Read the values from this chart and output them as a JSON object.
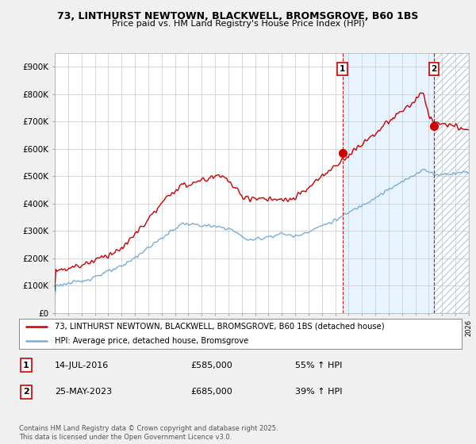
{
  "title_line1": "73, LINTHURST NEWTOWN, BLACKWELL, BROMSGROVE, B60 1BS",
  "title_line2": "Price paid vs. HM Land Registry's House Price Index (HPI)",
  "ylim": [
    0,
    950000
  ],
  "yticks": [
    0,
    100000,
    200000,
    300000,
    400000,
    500000,
    600000,
    700000,
    800000,
    900000
  ],
  "ytick_labels": [
    "£0",
    "£100K",
    "£200K",
    "£300K",
    "£400K",
    "£500K",
    "£600K",
    "£700K",
    "£800K",
    "£900K"
  ],
  "hpi_color": "#7aaed6",
  "price_color": "#cc0000",
  "shade_color": "#ddeeff",
  "marker1_year": 2016.54,
  "marker1_price": 585000,
  "marker1_label": "14-JUL-2016",
  "marker1_amount": "£585,000",
  "marker1_pct": "55% ↑ HPI",
  "marker2_year": 2023.4,
  "marker2_price": 685000,
  "marker2_label": "25-MAY-2023",
  "marker2_amount": "£685,000",
  "marker2_pct": "39% ↑ HPI",
  "legend_label1": "73, LINTHURST NEWTOWN, BLACKWELL, BROMSGROVE, B60 1BS (detached house)",
  "legend_label2": "HPI: Average price, detached house, Bromsgrove",
  "footnote": "Contains HM Land Registry data © Crown copyright and database right 2025.\nThis data is licensed under the Open Government Licence v3.0.",
  "background_color": "#f0f0f0",
  "plot_background": "#ffffff",
  "grid_color": "#c8c8c8",
  "xlim_start": 1995,
  "xlim_end": 2026
}
